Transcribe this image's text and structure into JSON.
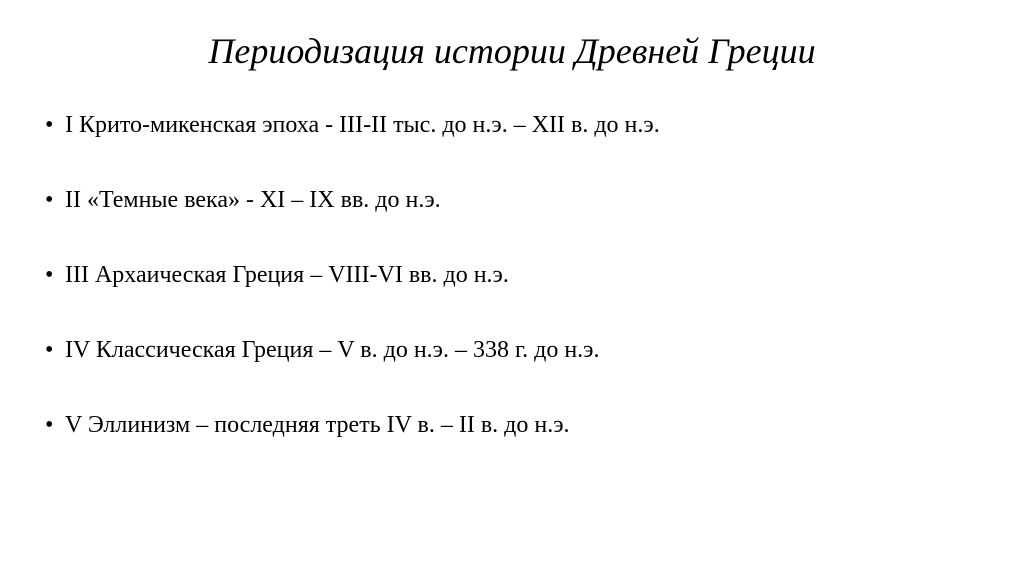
{
  "slide": {
    "title": "Периодизация истории Древней Греции",
    "title_fontsize": 36,
    "title_style": "italic",
    "background_color": "#ffffff",
    "text_color": "#000000",
    "bullet_fontsize": 24,
    "items": [
      {
        "text": "I Крито-микенская эпоха - III-II тыс. до н.э. – XII в. до н.э."
      },
      {
        "text": "II «Темные века» - XI – IX вв. до н.э."
      },
      {
        "text": "III Архаическая Греция – VIII-VI вв. до н.э."
      },
      {
        "text": "IV Классическая Греция – V в. до н.э. – 338 г. до н.э."
      },
      {
        "text": "V Эллинизм – последняя треть IV в. – II в. до н.э."
      }
    ]
  }
}
